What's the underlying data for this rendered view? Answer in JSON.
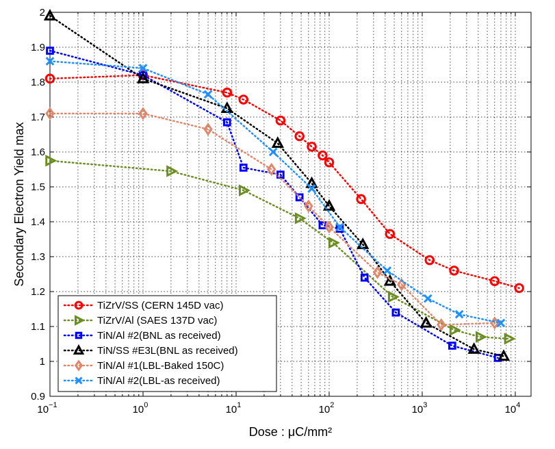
{
  "chart_data": {
    "type": "scatter",
    "title": "",
    "xlabel": "Dose : μC/mm²",
    "ylabel": "Secondary Electron Yield max",
    "xscale": "log",
    "xlim": [
      0.1,
      15000
    ],
    "ylim": [
      0.9,
      2.0
    ],
    "x_ticks": [
      {
        "value": 0.1,
        "base": "10",
        "exp": "−1"
      },
      {
        "value": 1,
        "base": "10",
        "exp": "0"
      },
      {
        "value": 10,
        "base": "10",
        "exp": "1"
      },
      {
        "value": 100,
        "base": "10",
        "exp": "2"
      },
      {
        "value": 1000,
        "base": "10",
        "exp": "3"
      },
      {
        "value": 10000,
        "base": "10",
        "exp": "4"
      }
    ],
    "y_ticks": [
      {
        "value": 0.9,
        "label": "0.9"
      },
      {
        "value": 1.0,
        "label": "1"
      },
      {
        "value": 1.1,
        "label": "1.1"
      },
      {
        "value": 1.2,
        "label": "1.2"
      },
      {
        "value": 1.3,
        "label": "1.3"
      },
      {
        "value": 1.4,
        "label": "1.4"
      },
      {
        "value": 1.5,
        "label": "1.5"
      },
      {
        "value": 1.6,
        "label": "1.6"
      },
      {
        "value": 1.7,
        "label": "1.7"
      },
      {
        "value": 1.8,
        "label": "1.8"
      },
      {
        "value": 1.9,
        "label": "1.9"
      },
      {
        "value": 2.0,
        "label": "2"
      }
    ],
    "grid": true,
    "legend_position": "bottom-left",
    "series": [
      {
        "name": "TiZrV/SS (CERN 145D vac)",
        "marker": "circle",
        "color": "#ff0000",
        "x": [
          0.1,
          1,
          8,
          12,
          30,
          48,
          65,
          85,
          100,
          220,
          450,
          1200,
          2200,
          6000,
          11000
        ],
        "y": [
          1.81,
          1.82,
          1.77,
          1.75,
          1.69,
          1.645,
          1.615,
          1.59,
          1.57,
          1.465,
          1.365,
          1.29,
          1.26,
          1.23,
          1.21
        ]
      },
      {
        "name": "TiZrV/Al (SAES 137D vac)",
        "marker": "triangle-right",
        "color": "#6b8e23",
        "x": [
          0.1,
          2,
          12,
          48,
          110,
          480,
          2200,
          4200,
          8500
        ],
        "y": [
          1.575,
          1.545,
          1.49,
          1.41,
          1.34,
          1.185,
          1.09,
          1.07,
          1.065
        ]
      },
      {
        "name": "TiN/Al #2(BNL as received)",
        "marker": "square",
        "color": "#0000ff",
        "x": [
          0.1,
          1,
          8,
          12,
          30,
          48,
          85,
          130,
          240,
          520,
          2100,
          6500
        ],
        "y": [
          1.89,
          1.82,
          1.685,
          1.555,
          1.535,
          1.47,
          1.39,
          1.38,
          1.24,
          1.14,
          1.045,
          1.01
        ]
      },
      {
        "name": "TiN/SS #E3L(BNL as received)",
        "marker": "triangle-up",
        "color": "#000000",
        "x": [
          0.1,
          1,
          8,
          28,
          65,
          100,
          230,
          450,
          1100,
          3600,
          7500
        ],
        "y": [
          1.99,
          1.81,
          1.725,
          1.625,
          1.51,
          1.445,
          1.335,
          1.23,
          1.11,
          1.035,
          1.015
        ]
      },
      {
        "name": "TiN/Al #1(LBL-Baked 150C)",
        "marker": "diamond",
        "color": "#e0876a",
        "x": [
          0.1,
          1,
          5,
          24,
          60,
          100,
          330,
          600,
          1600,
          6000
        ],
        "y": [
          1.71,
          1.71,
          1.665,
          1.55,
          1.445,
          1.385,
          1.255,
          1.22,
          1.105,
          1.11
        ]
      },
      {
        "name": "TiN/Al #2(LBL-as received)",
        "marker": "x",
        "color": "#1e90ff",
        "x": [
          0.1,
          1,
          5,
          25,
          65,
          130,
          420,
          1150,
          2500,
          7000
        ],
        "y": [
          1.86,
          1.84,
          1.765,
          1.6,
          1.495,
          1.385,
          1.26,
          1.18,
          1.135,
          1.11
        ]
      }
    ]
  }
}
